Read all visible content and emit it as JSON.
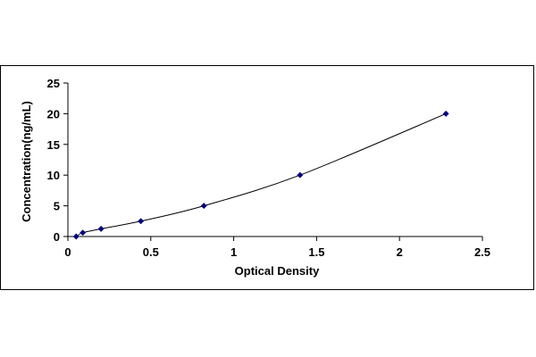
{
  "chart_data": {
    "type": "scatter",
    "title": "",
    "xlabel": "Optical Density",
    "ylabel": "Concentration(ng/mL)",
    "xlim": [
      0,
      2.5
    ],
    "ylim": [
      0,
      25
    ],
    "x_ticks": [
      "0",
      "0.5",
      "1",
      "1.5",
      "2",
      "2.5"
    ],
    "y_ticks": [
      "0",
      "5",
      "10",
      "15",
      "20",
      "25"
    ],
    "grid": false,
    "legend": "none",
    "series": [
      {
        "x": [
          0.05,
          0.09,
          0.2,
          0.44,
          0.82,
          1.4,
          2.28
        ],
        "y": [
          0,
          0.625,
          1.25,
          2.5,
          5,
          10,
          20
        ],
        "marker": "diamond",
        "fit_line": true
      }
    ],
    "colors": {
      "marker": "#000080",
      "line": "#000000",
      "axis": "#000000"
    }
  }
}
